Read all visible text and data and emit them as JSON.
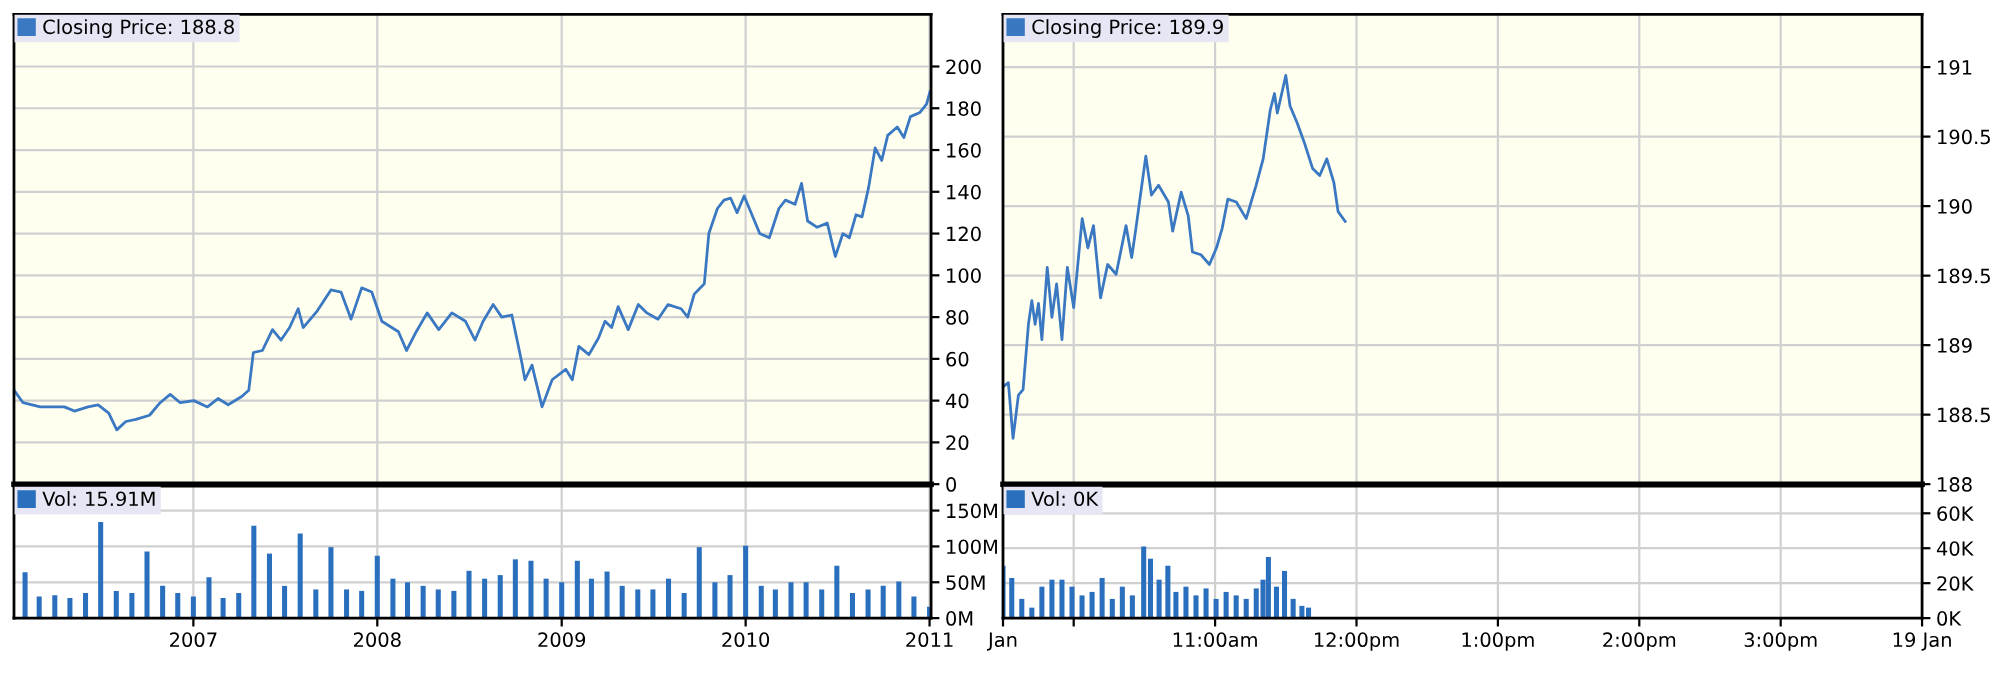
{
  "chart_data": [
    {
      "type": "line",
      "xlim": [
        "2006-01-10",
        "2011-01-04"
      ],
      "xticks": [
        {
          "value": "2007",
          "label": null
        },
        {
          "value": "2008",
          "label": null
        },
        {
          "value": "2009",
          "label": null
        },
        {
          "value": "2010",
          "label": null
        },
        {
          "value": "2011",
          "label": null
        }
      ],
      "ylim": [
        0,
        225
      ],
      "yticks": [
        0,
        20,
        40,
        60,
        80,
        100,
        120,
        140,
        160,
        180,
        200
      ],
      "grid": true,
      "legend": "top left",
      "tick_labels": "y",
      "series": [
        {
          "name": "Closing Price: 188.8",
          "color": "#3a78c2",
          "x": [
            "2006-01-10",
            "2006-01-28",
            "2006-03-03",
            "2006-03-30",
            "2006-04-20",
            "2006-05-10",
            "2006-06-06",
            "2006-06-26",
            "2006-07-17",
            "2006-08-02",
            "2006-08-20",
            "2006-09-09",
            "2006-10-06",
            "2006-10-27",
            "2006-11-16",
            "2006-12-06",
            "2007-01-02",
            "2007-01-29",
            "2007-02-19",
            "2007-03-11",
            "2007-04-07",
            "2007-04-21",
            "2007-04-30",
            "2007-05-18",
            "2007-06-07",
            "2007-06-24",
            "2007-07-11",
            "2007-07-28",
            "2007-08-07",
            "2007-09-04",
            "2007-10-01",
            "2007-10-21",
            "2007-11-10",
            "2007-12-01",
            "2007-12-21",
            "2008-01-10",
            "2008-02-12",
            "2008-02-28",
            "2008-03-16",
            "2008-04-09",
            "2008-05-02",
            "2008-05-28",
            "2008-06-24",
            "2008-07-13",
            "2008-07-29",
            "2008-08-18",
            "2008-09-04",
            "2008-09-24",
            "2008-10-14",
            "2008-10-20",
            "2008-11-03",
            "2008-11-23",
            "2008-12-13",
            "2009-01-09",
            "2009-01-22",
            "2009-02-04",
            "2009-02-24",
            "2009-03-15",
            "2009-03-28",
            "2009-04-10",
            "2009-04-23",
            "2009-05-13",
            "2009-06-02",
            "2009-06-19",
            "2009-07-11",
            "2009-07-31",
            "2009-08-26",
            "2009-09-08",
            "2009-09-21",
            "2009-10-11",
            "2009-10-20",
            "2009-11-06",
            "2009-11-19",
            "2009-12-02",
            "2009-12-15",
            "2009-12-29",
            "2010-01-10",
            "2010-01-29",
            "2010-02-17",
            "2010-03-08",
            "2010-03-21",
            "2010-04-09",
            "2010-04-22",
            "2010-05-04",
            "2010-05-23",
            "2010-06-12",
            "2010-06-28",
            "2010-07-13",
            "2010-07-26",
            "2010-08-08",
            "2010-08-20",
            "2010-09-02",
            "2010-09-15",
            "2010-09-28",
            "2010-10-10",
            "2010-10-29",
            "2010-11-11",
            "2010-11-24",
            "2010-12-13",
            "2010-12-26",
            "2011-01-02"
          ],
          "values": [
            45,
            39,
            37,
            37,
            37,
            35,
            37,
            38,
            34,
            26,
            30,
            31,
            33,
            39,
            43,
            39,
            40,
            37,
            41,
            38,
            42,
            45,
            63,
            64,
            74,
            69,
            75,
            84,
            75,
            83,
            93,
            92,
            79,
            94,
            92,
            78,
            73,
            64,
            72,
            82,
            74,
            82,
            78,
            69,
            78,
            86,
            80,
            81,
            58,
            50,
            57,
            37,
            50,
            55,
            50,
            66,
            62,
            70,
            78,
            75,
            85,
            74,
            86,
            82,
            79,
            86,
            84,
            80,
            91,
            96,
            120,
            132,
            136,
            137,
            130,
            138,
            131,
            120,
            118,
            132,
            136,
            134,
            144,
            126,
            123,
            125,
            109,
            120,
            118,
            129,
            128,
            142,
            161,
            155,
            167,
            171,
            166,
            176,
            178,
            182,
            188
          ]
        }
      ]
    },
    {
      "type": "bar",
      "xlim": [
        "2006-01-10",
        "2011-01-04"
      ],
      "xticks": [
        "2007",
        "2008",
        "2009",
        "2010",
        "2011"
      ],
      "ylim": [
        0,
        184
      ],
      "yticks": [
        {
          "value": 0,
          "label": "0M"
        },
        {
          "value": 50,
          "label": "50M"
        },
        {
          "value": 100,
          "label": "100M"
        },
        {
          "value": 150,
          "label": "150M"
        }
      ],
      "grid": true,
      "legend": "top left",
      "series": [
        {
          "name": "Vol: 15.91M",
          "color": "#2a6fbd",
          "x": [
            "2006-02-01",
            "2006-03-01",
            "2006-04-01",
            "2006-05-01",
            "2006-06-01",
            "2006-07-01",
            "2006-08-01",
            "2006-09-01",
            "2006-10-01",
            "2006-11-01",
            "2006-12-01",
            "2007-01-01",
            "2007-02-01",
            "2007-03-01",
            "2007-04-01",
            "2007-05-01",
            "2007-06-01",
            "2007-07-01",
            "2007-08-01",
            "2007-09-01",
            "2007-10-01",
            "2007-11-01",
            "2007-12-01",
            "2008-01-01",
            "2008-02-01",
            "2008-03-01",
            "2008-04-01",
            "2008-05-01",
            "2008-06-01",
            "2008-07-01",
            "2008-08-01",
            "2008-09-01",
            "2008-10-01",
            "2008-11-01",
            "2008-12-01",
            "2009-01-01",
            "2009-02-01",
            "2009-03-01",
            "2009-04-01",
            "2009-05-01",
            "2009-06-01",
            "2009-07-01",
            "2009-08-01",
            "2009-09-01",
            "2009-10-01",
            "2009-11-01",
            "2009-12-01",
            "2010-01-01",
            "2010-02-01",
            "2010-03-01",
            "2010-04-01",
            "2010-05-01",
            "2010-06-01",
            "2010-07-01",
            "2010-08-01",
            "2010-09-01",
            "2010-10-01",
            "2010-11-01",
            "2010-12-01",
            "2011-01-01"
          ],
          "values": [
            64,
            30,
            32,
            28,
            35,
            134,
            38,
            35,
            93,
            45,
            35,
            30,
            57,
            28,
            35,
            129,
            90,
            45,
            118,
            40,
            99,
            40,
            38,
            87,
            55,
            50,
            45,
            40,
            38,
            66,
            55,
            60,
            82,
            80,
            55,
            50,
            80,
            55,
            65,
            45,
            40,
            40,
            55,
            35,
            99,
            50,
            60,
            101,
            45,
            40,
            50,
            50,
            40,
            73,
            35,
            40,
            45,
            51,
            30,
            16
          ]
        }
      ]
    },
    {
      "type": "line",
      "xlim": [
        9.5,
        16
      ],
      "xticks": [
        {
          "value": 9.5,
          "label": null
        },
        {
          "value": 10,
          "label": null
        },
        {
          "value": 11,
          "label": null
        },
        {
          "value": 12,
          "label": null
        },
        {
          "value": 13,
          "label": null
        },
        {
          "value": 14,
          "label": null
        },
        {
          "value": 15,
          "label": null
        },
        {
          "value": 16,
          "label": null
        }
      ],
      "ylim": [
        188,
        191.38
      ],
      "yticks": [
        188,
        188.5,
        189,
        189.5,
        190,
        190.5,
        191
      ],
      "grid": true,
      "legend": "top left",
      "tick_labels": "y",
      "series": [
        {
          "name": "Closing Price: 189.9",
          "color": "#3a78c2",
          "x": [
            9.5,
            9.538,
            9.571,
            9.609,
            9.642,
            9.68,
            9.704,
            9.727,
            9.751,
            9.775,
            9.813,
            9.846,
            9.879,
            9.917,
            9.955,
            10.0,
            10.06,
            10.1,
            10.14,
            10.19,
            10.24,
            10.3,
            10.37,
            10.41,
            10.44,
            10.51,
            10.55,
            10.6,
            10.67,
            10.7,
            10.76,
            10.81,
            10.84,
            10.9,
            10.96,
            11.01,
            11.05,
            11.09,
            11.15,
            11.22,
            11.29,
            11.34,
            11.39,
            11.42,
            11.44,
            11.5,
            11.53,
            11.58,
            11.63,
            11.69,
            11.74,
            11.79,
            11.84,
            11.87,
            11.92
          ],
          "values": [
            188.7,
            188.73,
            188.33,
            188.64,
            188.68,
            189.15,
            189.32,
            189.15,
            189.3,
            189.04,
            189.56,
            189.2,
            189.44,
            189.04,
            189.56,
            189.27,
            189.91,
            189.7,
            189.86,
            189.34,
            189.58,
            189.51,
            189.86,
            189.63,
            189.84,
            190.36,
            190.08,
            190.15,
            190.03,
            189.82,
            190.1,
            189.93,
            189.67,
            189.65,
            189.58,
            189.7,
            189.84,
            190.05,
            190.03,
            189.91,
            190.15,
            190.34,
            190.69,
            190.81,
            190.67,
            190.94,
            190.72,
            190.6,
            190.46,
            190.27,
            190.22,
            190.34,
            190.17,
            189.96,
            189.89
          ]
        }
      ]
    },
    {
      "type": "bar",
      "xlim": [
        9.5,
        16
      ],
      "xticks": [
        {
          "value": 9.5,
          "label": "Jan"
        },
        {
          "value": 10,
          "label": null
        },
        {
          "value": 11,
          "label": "11:00am"
        },
        {
          "value": 12,
          "label": "12:00pm"
        },
        {
          "value": 13,
          "label": "1:00pm"
        },
        {
          "value": 14,
          "label": "2:00pm"
        },
        {
          "value": 15,
          "label": "3:00pm"
        },
        {
          "value": 16,
          "label": "19 Jan"
        }
      ],
      "ylim": [
        0,
        75.5
      ],
      "yticks": [
        {
          "value": 0,
          "label": "0K"
        },
        {
          "value": 20,
          "label": "20K"
        },
        {
          "value": 40,
          "label": "40K"
        },
        {
          "value": 60,
          "label": "60K"
        }
      ],
      "grid": true,
      "legend": "top left",
      "series": [
        {
          "name": "Vol: 0K",
          "color": "#2a6fbd",
          "x": [
            9.5,
            9.562,
            9.633,
            9.704,
            9.775,
            9.846,
            9.917,
            9.988,
            10.059,
            10.13,
            10.201,
            10.273,
            10.344,
            10.415,
            10.495,
            10.543,
            10.604,
            10.666,
            10.723,
            10.794,
            10.865,
            10.936,
            11.007,
            11.078,
            11.149,
            11.22,
            11.291,
            11.339,
            11.377,
            11.434,
            11.491,
            11.552,
            11.614,
            11.661
          ],
          "values": [
            30,
            23,
            11,
            6,
            18,
            22,
            22,
            18,
            13,
            15,
            23,
            11,
            18,
            13,
            41,
            34,
            22,
            30,
            15,
            18,
            13,
            17,
            11,
            15,
            13,
            11,
            17,
            22,
            35,
            18,
            27,
            11,
            7,
            6
          ]
        }
      ]
    }
  ]
}
